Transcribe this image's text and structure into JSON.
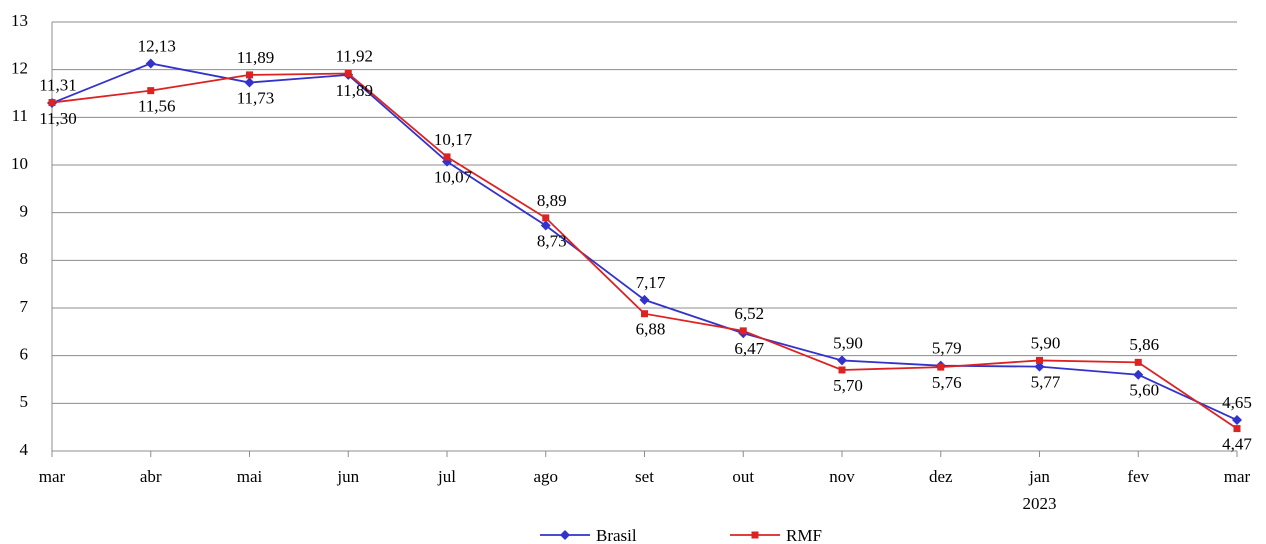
{
  "chart_data": {
    "type": "line",
    "categories": [
      "mar",
      "abr",
      "mai",
      "jun",
      "jul",
      "ago",
      "set",
      "out",
      "nov",
      "dez",
      "jan",
      "fev",
      "mar"
    ],
    "year_label": "2023",
    "series": [
      {
        "name": "Brasil",
        "color": "#3333cc",
        "marker": "diamond",
        "values": [
          11.3,
          12.13,
          11.73,
          11.89,
          10.07,
          8.73,
          7.17,
          6.47,
          5.9,
          5.79,
          5.77,
          5.6,
          4.65
        ],
        "value_labels": [
          "11,30",
          "12,13",
          "11,73",
          "11,89",
          "10,07",
          "8,73",
          "7,17",
          "6,47",
          "5,90",
          "5,79",
          "5,77",
          "5,60",
          "4,65"
        ]
      },
      {
        "name": "RMF",
        "color": "#dd2222",
        "marker": "square",
        "values": [
          11.31,
          11.56,
          11.89,
          11.92,
          10.17,
          8.89,
          6.88,
          6.52,
          5.7,
          5.76,
          5.9,
          5.86,
          4.47
        ],
        "value_labels": [
          "11,31",
          "11,56",
          "11,89",
          "11,92",
          "10,17",
          "8,89",
          "6,88",
          "6,52",
          "5,70",
          "5,76",
          "5,90",
          "5,86",
          "4,47"
        ]
      }
    ],
    "ylim": [
      4,
      13
    ],
    "yticks": [
      4,
      5,
      6,
      7,
      8,
      9,
      10,
      11,
      12,
      13
    ],
    "grid": true,
    "legend": "bottom"
  }
}
